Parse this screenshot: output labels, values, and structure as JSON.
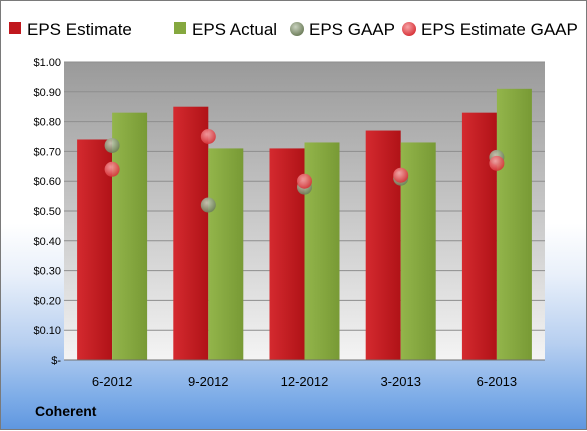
{
  "company": "Coherent",
  "colors": {
    "eps_estimate": "#c0171d",
    "eps_actual": "#85a83f",
    "eps_gaap": "#7e8f6a",
    "eps_estimate_gaap": "#e0464b",
    "plot_bg_top": "#9a9a9a",
    "plot_bg_bottom": "#f4f4f4"
  },
  "chart_data": {
    "type": "bar",
    "categories": [
      "6-2012",
      "9-2012",
      "12-2012",
      "3-2013",
      "6-2013"
    ],
    "series": [
      {
        "name": "EPS Estimate",
        "kind": "bar",
        "values": [
          0.74,
          0.85,
          0.71,
          0.77,
          0.83
        ]
      },
      {
        "name": "EPS Actual",
        "kind": "bar",
        "values": [
          0.83,
          0.71,
          0.73,
          0.73,
          0.91
        ]
      },
      {
        "name": "EPS GAAP",
        "kind": "marker",
        "values": [
          0.72,
          0.52,
          0.58,
          0.61,
          0.68
        ]
      },
      {
        "name": "EPS Estimate GAAP",
        "kind": "marker",
        "values": [
          0.64,
          0.75,
          0.6,
          0.62,
          0.66
        ]
      }
    ],
    "y_ticks": [
      "$-",
      "$0.10",
      "$0.20",
      "$0.30",
      "$0.40",
      "$0.50",
      "$0.60",
      "$0.70",
      "$0.80",
      "$0.90",
      "$1.00"
    ],
    "ylim": [
      0,
      1.0
    ],
    "grid": true,
    "legend_position": "top"
  }
}
